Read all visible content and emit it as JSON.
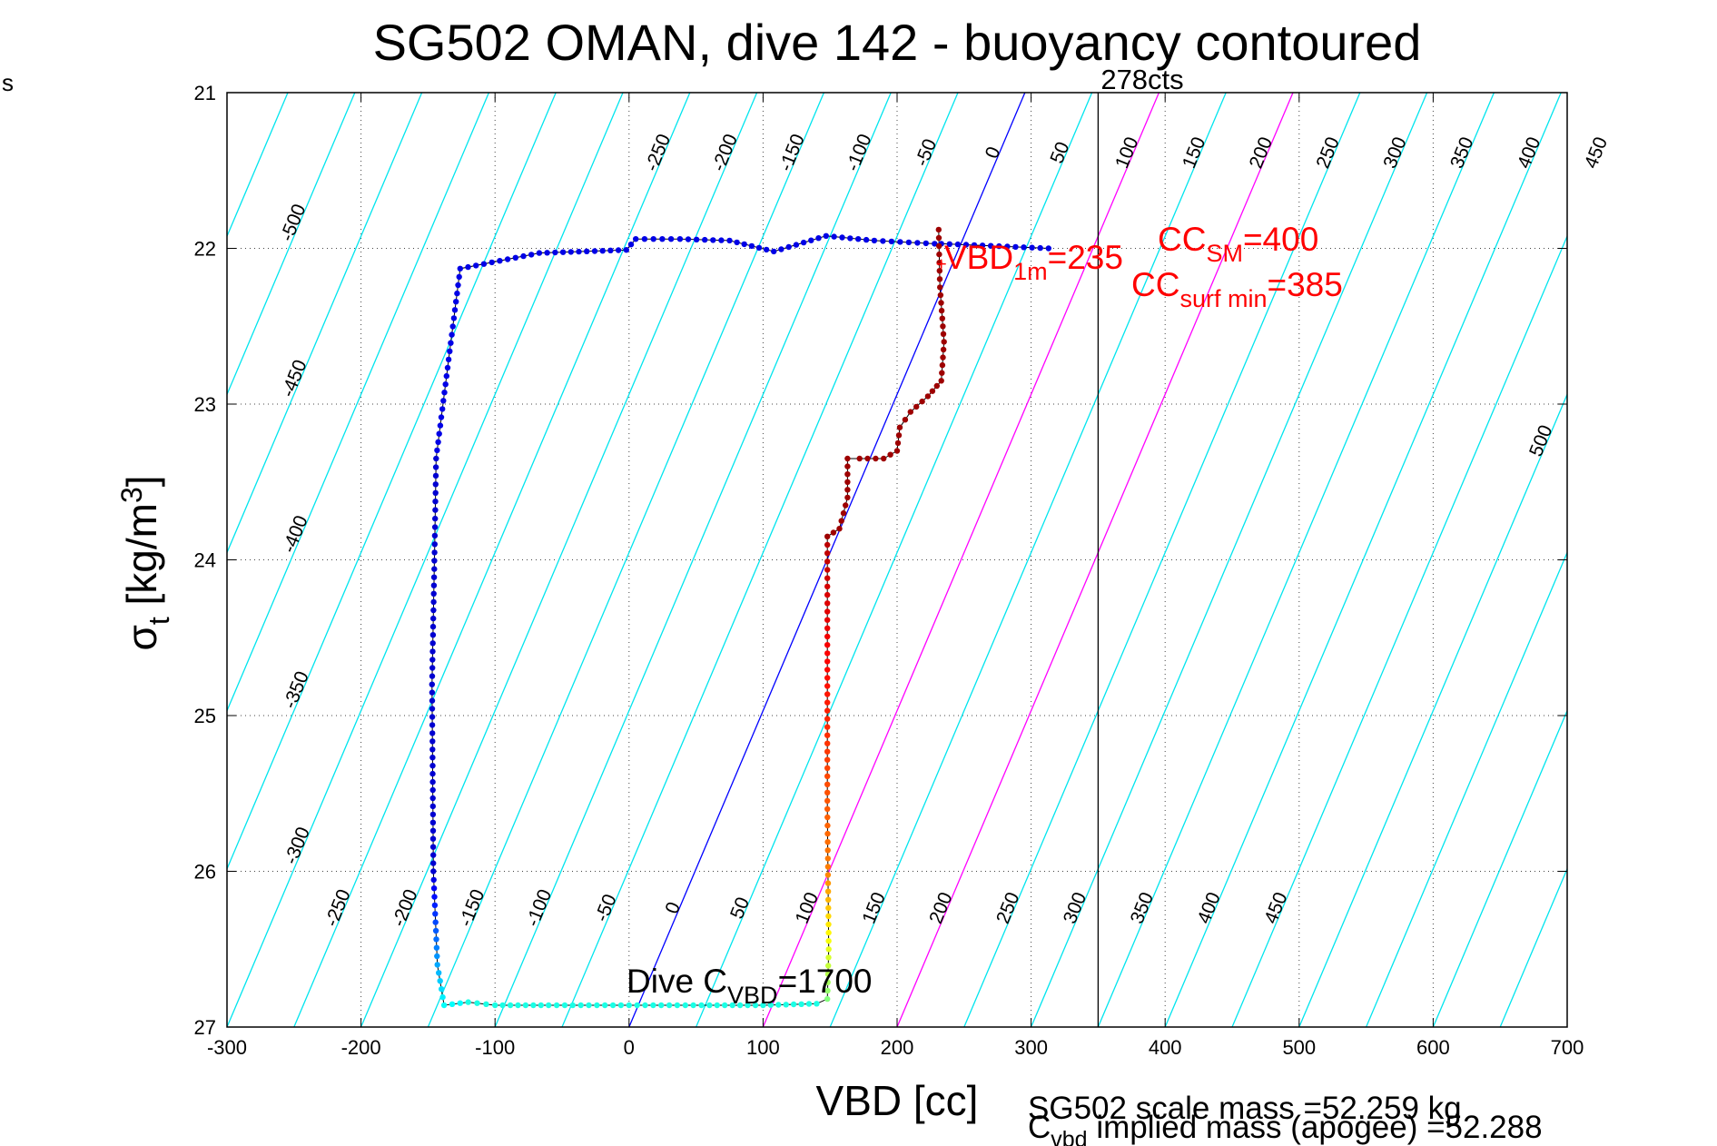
{
  "chart_data": {
    "type": "scatter",
    "title": "SG502 OMAN, dive 142 - buoyancy contoured",
    "xlabel": "VBD [cc]",
    "ylabel": "σt [kg/m3]",
    "xlim": [
      -300,
      700
    ],
    "ylim": [
      21,
      27
    ],
    "y_reversed": true,
    "grid": true,
    "xticks": [
      -300,
      -200,
      -100,
      0,
      100,
      200,
      300,
      400,
      500,
      600,
      700
    ],
    "yticks": [
      21,
      22,
      23,
      24,
      25,
      26,
      27
    ],
    "contour_values": [
      -500,
      -450,
      -400,
      -350,
      -300,
      -250,
      -200,
      -150,
      -100,
      -50,
      0,
      50,
      100,
      150,
      200,
      250,
      300,
      350,
      400,
      450,
      500
    ],
    "top_labels": [
      "-250",
      "-200",
      "-150",
      "-100",
      "-50",
      "0",
      "50",
      "100",
      "150",
      "200",
      "250",
      "300",
      "350",
      "400",
      "450"
    ],
    "bottom_labels": [
      "-250",
      "-200",
      "-150",
      "-100",
      "-50",
      "0",
      "50",
      "100",
      "150",
      "200",
      "250",
      "300",
      "350",
      "400",
      "450"
    ],
    "left_labels": [
      "-500",
      "-450",
      "-400",
      "-350",
      "-300"
    ],
    "right_labels": [
      "500"
    ],
    "highlight_contours": [
      {
        "value": 0,
        "color": "#0000ff"
      },
      {
        "value": 100,
        "color": "#ff00ff"
      },
      {
        "value": 200,
        "color": "#ff00ff"
      }
    ],
    "vertical_line": {
      "x": 350,
      "label": "278cts"
    },
    "marker": {
      "x": 233,
      "y": 22.1
    },
    "descent_color": "#0000aa",
    "ascent_color": "#8b0000",
    "series": [
      {
        "points": [
          [
            313,
            22.0
          ],
          [
            233,
            21.97
          ],
          [
            228,
            21.97
          ],
          [
            183,
            21.95
          ],
          [
            147,
            21.92
          ],
          [
            108,
            22.02
          ],
          [
            75,
            21.95
          ],
          [
            38,
            21.94
          ],
          [
            5,
            21.94
          ],
          [
            -2,
            22.01
          ],
          [
            -67,
            22.03
          ],
          [
            -126,
            22.13
          ],
          [
            -144,
            23.35
          ],
          [
            -145,
            23.9
          ],
          [
            -147,
            24.8
          ],
          [
            -146,
            26.0
          ],
          [
            -143,
            26.6
          ],
          [
            -138,
            26.86
          ],
          [
            -120,
            26.84
          ],
          [
            -100,
            26.86
          ],
          [
            -60,
            26.86
          ],
          [
            0,
            26.86
          ],
          [
            60,
            26.86
          ],
          [
            100,
            26.86
          ],
          [
            140,
            26.85
          ],
          [
            148,
            26.82
          ],
          [
            149,
            26.5
          ],
          [
            148,
            25.6
          ],
          [
            148,
            24.6
          ],
          [
            148,
            23.85
          ],
          [
            157,
            23.8
          ],
          [
            163,
            23.6
          ],
          [
            163,
            23.35
          ],
          [
            172,
            23.35
          ],
          [
            190,
            23.35
          ],
          [
            200,
            23.3
          ],
          [
            202,
            23.15
          ],
          [
            210,
            23.05
          ],
          [
            223,
            22.95
          ],
          [
            233,
            22.85
          ],
          [
            235,
            22.6
          ],
          [
            232,
            22.25
          ],
          [
            231,
            21.88
          ]
        ]
      }
    ]
  },
  "annotations": {
    "cts_label": "278cts",
    "vbd_1m_main": "VBD",
    "vbd_1m_sub": "1m",
    "vbd_1m_value": "=235",
    "cc_sm_main": "CC",
    "cc_sm_sub": "SM",
    "cc_sm_value": "=400",
    "cc_surf_main": "CC",
    "cc_surf_sub": "surf min",
    "cc_surf_value": "=385",
    "dive_c_main": "Dive C",
    "dive_c_sub": "VBD",
    "dive_c_value": "=1700",
    "scale_mass": "SG502 scale mass =52.259 kg",
    "implied_main": "C",
    "implied_sub": "vbd",
    "implied_text": " implied mass (apogee) =52.288",
    "edge_text": "s"
  }
}
